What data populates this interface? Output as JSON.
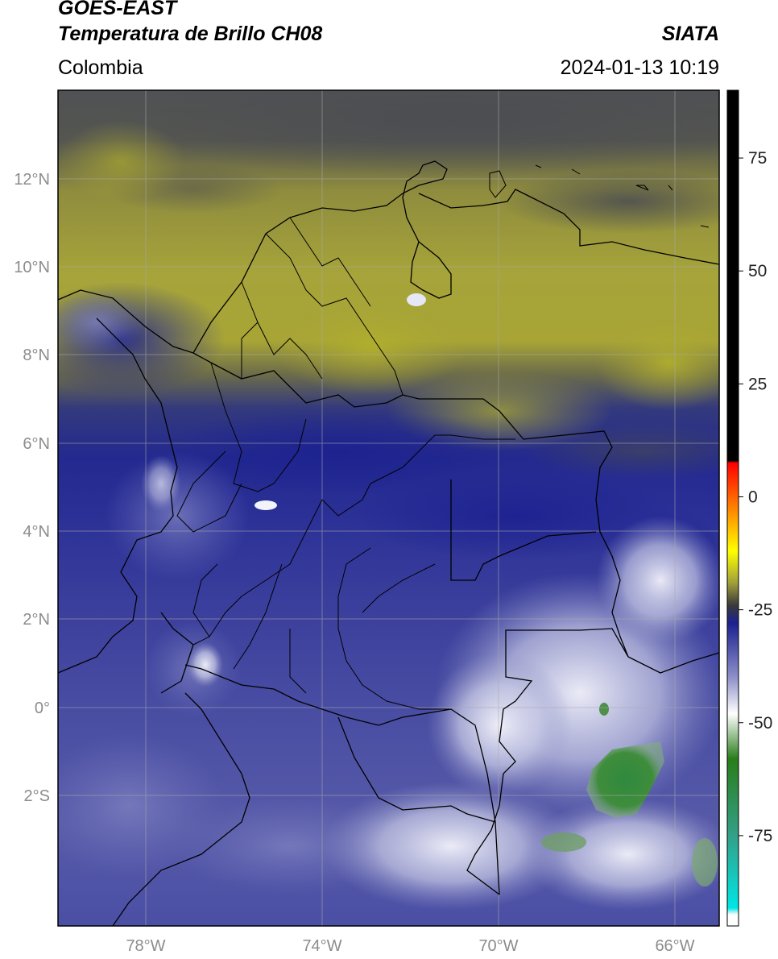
{
  "header": {
    "satellite": "GOES-EAST",
    "product": "Temperatura de Brillo CH08",
    "region": "Colombia",
    "source": "SIATA",
    "datetime": "2024-01-13 10:19"
  },
  "map": {
    "extent": {
      "lon_min": -80.0,
      "lon_max": -65.0,
      "lat_min": -5.2,
      "lat_max": 14.0
    },
    "lat_ticks": [
      "12°N",
      "10°N",
      "8°N",
      "6°N",
      "4°N",
      "2°N",
      "0°",
      "2°S"
    ],
    "lat_values": [
      12,
      10,
      8,
      6,
      4,
      2,
      0,
      -2
    ],
    "lon_ticks": [
      "78°W",
      "74°W",
      "70°W",
      "66°W"
    ],
    "lon_values": [
      -78,
      -74,
      -70,
      -66
    ],
    "grid": true,
    "colors": {
      "warm_dry": "#a8a636",
      "dark_band": "#4f5154",
      "moist_blue": "#2a2e96",
      "cold_white": "#e8e9f4",
      "very_cold_green": "#3c8c3c",
      "border": "#000000"
    }
  },
  "colorbar": {
    "label_ticks": [
      "75",
      "50",
      "25",
      "0",
      "-25",
      "-50",
      "-75"
    ],
    "tick_values": [
      75,
      50,
      25,
      0,
      -25,
      -50,
      -75
    ],
    "range": [
      -95,
      90
    ],
    "stops": [
      {
        "value": 90,
        "color": "#000000"
      },
      {
        "value": 8,
        "color": "#000000"
      },
      {
        "value": 7.5,
        "color": "#ff0000"
      },
      {
        "value": -12,
        "color": "#ffff00"
      },
      {
        "value": -19,
        "color": "#a2a03a"
      },
      {
        "value": -24,
        "color": "#3a3a3a"
      },
      {
        "value": -28,
        "color": "#1c2191"
      },
      {
        "value": -40,
        "color": "#8e90c8"
      },
      {
        "value": -48,
        "color": "#ffffff"
      },
      {
        "value": -58,
        "color": "#2a7d1a"
      },
      {
        "value": -75,
        "color": "#33a088"
      },
      {
        "value": -91,
        "color": "#00e5e5"
      },
      {
        "value": -92.5,
        "color": "#ffffff"
      },
      {
        "value": -95,
        "color": "#ffffff"
      }
    ]
  }
}
